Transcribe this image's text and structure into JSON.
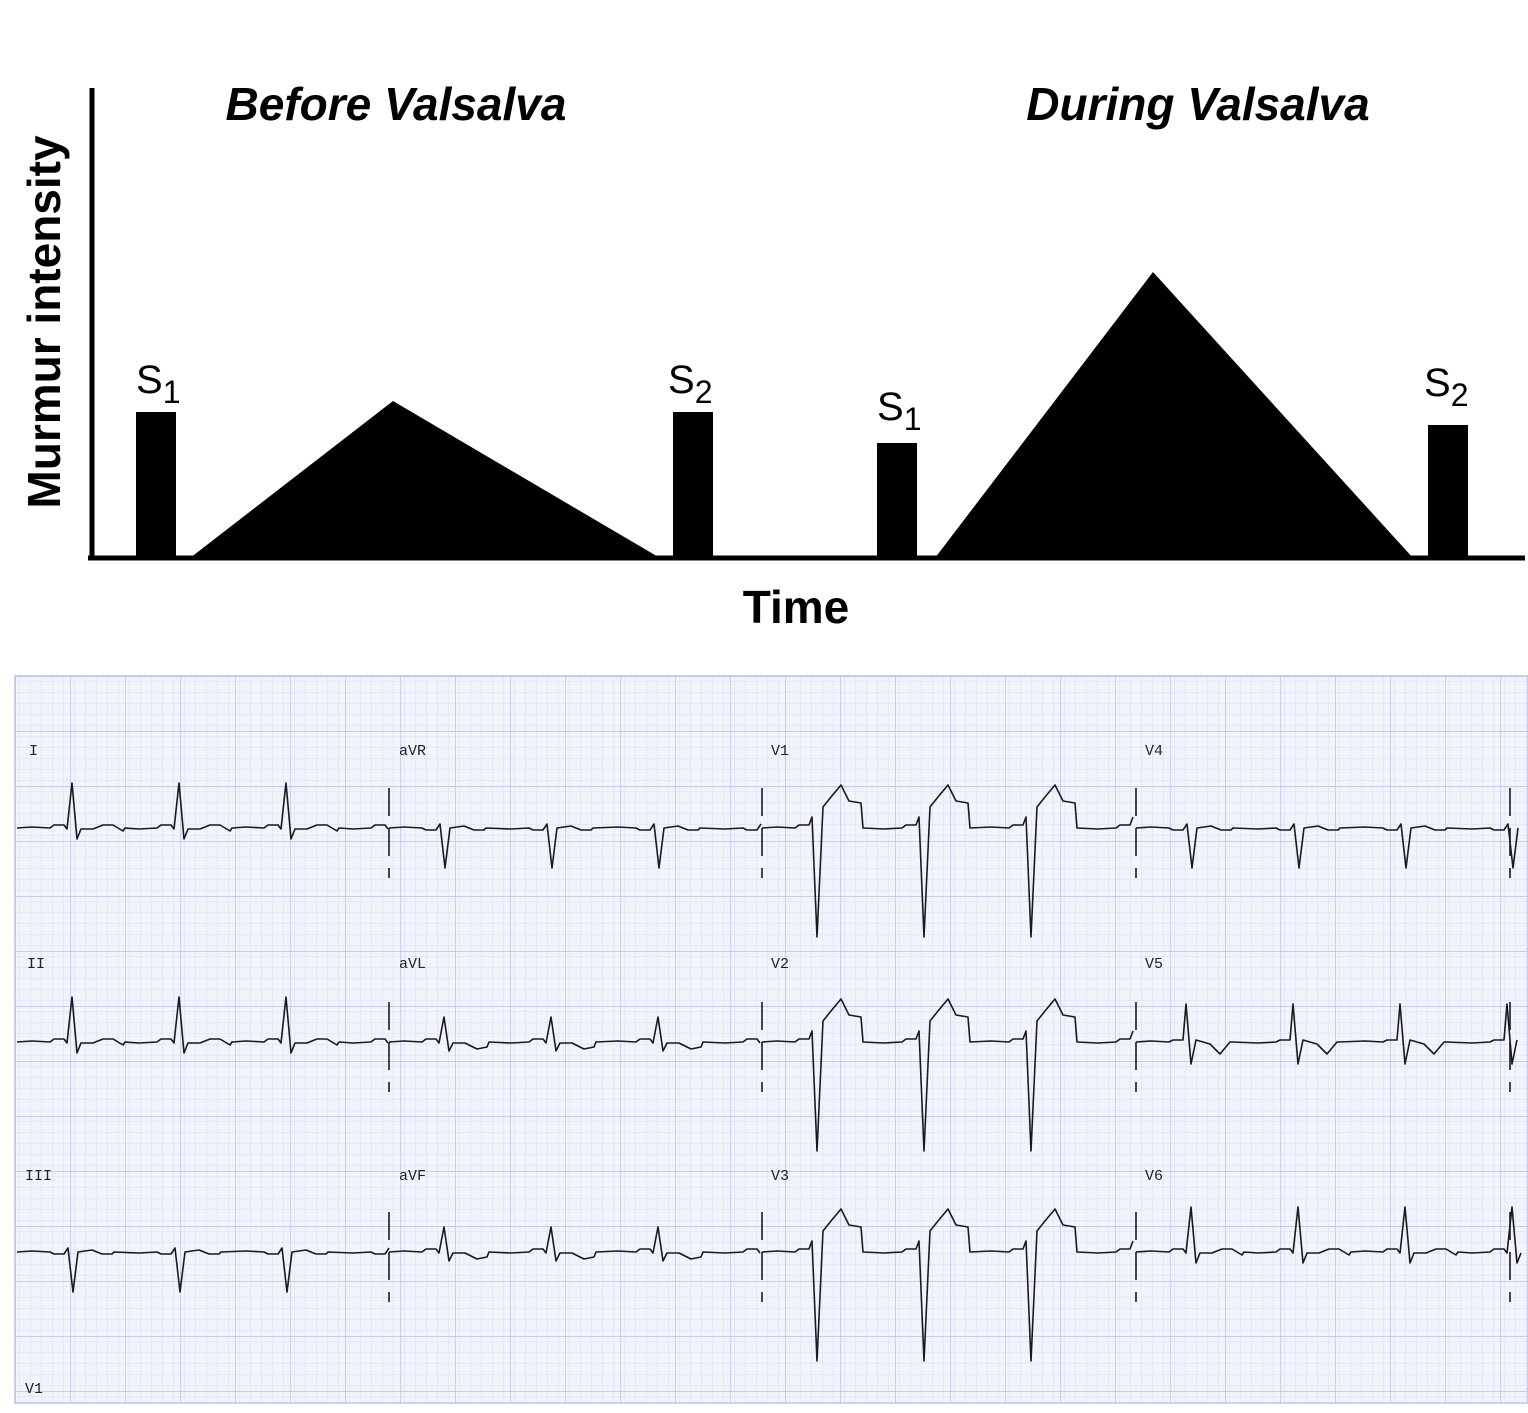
{
  "diagram": {
    "y_axis_label": "Murmur intensity",
    "x_axis_label": "Time",
    "panels": [
      {
        "title": "Before Valsalva",
        "s1": "S",
        "s1_sub": "1",
        "s2": "S",
        "s2_sub": "2"
      },
      {
        "title": "During Valsalva",
        "s1": "S",
        "s1_sub": "1",
        "s2": "S",
        "s2_sub": "2"
      }
    ],
    "fill_color": "#000000"
  },
  "ecg": {
    "leads": [
      [
        "I",
        "aVR",
        "V1",
        "V4"
      ],
      [
        "II",
        "aVL",
        "V2",
        "V5"
      ],
      [
        "III",
        "aVF",
        "V3",
        "V6"
      ]
    ],
    "rhythm_lead": "V1",
    "grid_minor_color": "#d9ddf4",
    "grid_major_color": "#b7bfea",
    "trace_color": "#1a1a1a"
  }
}
